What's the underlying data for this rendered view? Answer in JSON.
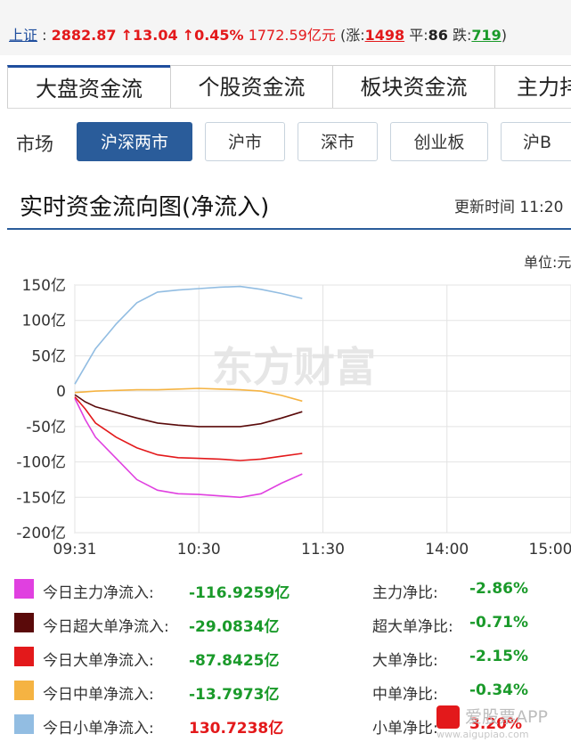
{
  "ticker": {
    "name": "上证",
    "colon": ":",
    "price": "2882.87",
    "change": "↑13.04",
    "pct": "↑0.45%",
    "turnover": "1772.59亿元",
    "up_label": "(涨:",
    "up_count": "1498",
    "flat_label": "平:",
    "flat_count": "86",
    "down_label": "跌:",
    "down_count": "719",
    "close": ")"
  },
  "tabs": [
    {
      "label": "大盘资金流",
      "active": true
    },
    {
      "label": "个股资金流",
      "active": false
    },
    {
      "label": "板块资金流",
      "active": false
    },
    {
      "label": "主力排",
      "active": false
    }
  ],
  "market": {
    "label": "市场",
    "options": [
      {
        "label": "沪深两市",
        "active": true
      },
      {
        "label": "沪市",
        "active": false
      },
      {
        "label": "深市",
        "active": false
      },
      {
        "label": "创业板",
        "active": false
      },
      {
        "label": "沪B",
        "active": false
      }
    ]
  },
  "section": {
    "title": "实时资金流向图(净流入)",
    "update_label": "更新时间",
    "update_time": "11:20",
    "unit": "单位:元"
  },
  "watermark": "东方财富",
  "chart_data": {
    "type": "line",
    "x_ticks": [
      "09:31",
      "10:30",
      "11:30",
      "14:00",
      "15:00"
    ],
    "y_ticks": [
      "150亿",
      "100亿",
      "50亿",
      "0",
      "-50亿",
      "-100亿",
      "-150亿",
      "-200亿"
    ],
    "ylim": [
      -200,
      150
    ],
    "y_unit": "亿",
    "grid": true,
    "session_minutes": 240,
    "series": [
      {
        "name": "今日主力净流入",
        "color": "#e040e0",
        "x": [
          0,
          5,
          10,
          20,
          30,
          40,
          50,
          60,
          70,
          80,
          90,
          100,
          110
        ],
        "y": [
          -10,
          -40,
          -65,
          -95,
          -125,
          -140,
          -145,
          -146,
          -148,
          -150,
          -145,
          -130,
          -117
        ]
      },
      {
        "name": "今日超大单净流入",
        "color": "#5a0a0a",
        "x": [
          0,
          5,
          10,
          20,
          30,
          40,
          50,
          60,
          70,
          80,
          90,
          100,
          110
        ],
        "y": [
          -5,
          -15,
          -22,
          -30,
          -38,
          -45,
          -48,
          -50,
          -50,
          -50,
          -46,
          -38,
          -29
        ]
      },
      {
        "name": "今日大单净流入",
        "color": "#e3191b",
        "x": [
          0,
          5,
          10,
          20,
          30,
          40,
          50,
          60,
          70,
          80,
          90,
          100,
          110
        ],
        "y": [
          -8,
          -25,
          -45,
          -65,
          -80,
          -90,
          -94,
          -95,
          -96,
          -98,
          -96,
          -92,
          -88
        ]
      },
      {
        "name": "今日中单净流入",
        "color": "#f5b342",
        "x": [
          0,
          5,
          10,
          20,
          30,
          40,
          50,
          60,
          70,
          80,
          90,
          100,
          110
        ],
        "y": [
          -2,
          -1,
          0,
          1,
          2,
          2,
          3,
          4,
          3,
          2,
          0,
          -6,
          -14
        ]
      },
      {
        "name": "今日小单净流入",
        "color": "#92bde2",
        "x": [
          0,
          5,
          10,
          20,
          30,
          40,
          50,
          60,
          70,
          80,
          90,
          100,
          110
        ],
        "y": [
          10,
          35,
          60,
          95,
          125,
          140,
          143,
          145,
          147,
          148,
          144,
          138,
          131
        ]
      }
    ]
  },
  "legend": [
    {
      "color": "#e040e0",
      "label": "今日主力净流入:",
      "value": "-116.9259亿",
      "ratio_label": "主力净比:",
      "ratio": "-2.86%",
      "sign": "neg"
    },
    {
      "color": "#5a0a0a",
      "label": "今日超大单净流入:",
      "value": "-29.0834亿",
      "ratio_label": "超大单净比:",
      "ratio": "-0.71%",
      "sign": "neg"
    },
    {
      "color": "#e3191b",
      "label": "今日大单净流入:",
      "value": "-87.8425亿",
      "ratio_label": "大单净比:",
      "ratio": "-2.15%",
      "sign": "neg"
    },
    {
      "color": "#f5b342",
      "label": "今日中单净流入:",
      "value": "-13.7973亿",
      "ratio_label": "中单净比:",
      "ratio": "-0.34%",
      "sign": "neg"
    },
    {
      "color": "#92bde2",
      "label": "今日小单净流入:",
      "value": "130.7238亿",
      "ratio_label": "小单净比:",
      "ratio": "3.20%",
      "sign": "pos"
    }
  ],
  "app_mark": {
    "text": "爱股票APP",
    "sub": "www.aigupiao.com"
  }
}
